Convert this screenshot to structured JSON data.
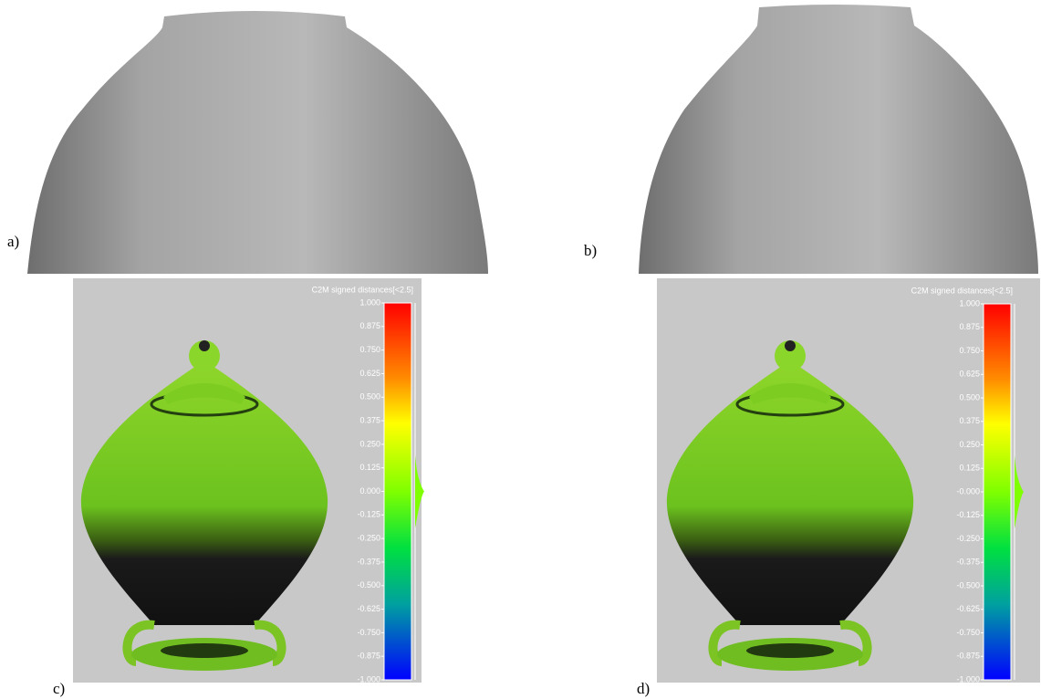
{
  "panels": [
    {
      "label": "a)"
    },
    {
      "label": "b)"
    },
    {
      "label": "c)",
      "scale": {
        "title": "C2M signed distances[<2.5]",
        "ticks": [
          {
            "value": 1,
            "label": "1.000"
          },
          {
            "value": 0.875,
            "label": "0.875"
          },
          {
            "value": 0.75,
            "label": "0.750"
          },
          {
            "value": 0.625,
            "label": "0.625"
          },
          {
            "value": 0.5,
            "label": "0.500"
          },
          {
            "value": 0.375,
            "label": "0.375"
          },
          {
            "value": 0.25,
            "label": "0.250"
          },
          {
            "value": 0.125,
            "label": "0.125"
          },
          {
            "value": 0,
            "label": "0.000"
          },
          {
            "value": -0.125,
            "label": "-0.125"
          },
          {
            "value": -0.25,
            "label": "-0.250"
          },
          {
            "value": -0.375,
            "label": "-0.375"
          },
          {
            "value": -0.5,
            "label": "-0.500"
          },
          {
            "value": -0.625,
            "label": "-0.625"
          },
          {
            "value": -0.75,
            "label": "-0.750"
          },
          {
            "value": -0.875,
            "label": "-0.875"
          },
          {
            "value": -1,
            "label": "-1.000"
          }
        ]
      }
    },
    {
      "label": "d)",
      "scale": {
        "title": "C2M signed distances[<2.5]",
        "ticks": [
          {
            "value": 1,
            "label": "1.000"
          },
          {
            "value": 0.875,
            "label": "0.875"
          },
          {
            "value": 0.75,
            "label": "0.750"
          },
          {
            "value": 0.625,
            "label": "0.625"
          },
          {
            "value": 0.5,
            "label": "0.500"
          },
          {
            "value": 0.375,
            "label": "0.375"
          },
          {
            "value": 0.25,
            "label": "0.250"
          },
          {
            "value": 0.125,
            "label": "0.125"
          },
          {
            "value": 0,
            "label": "-0.000"
          },
          {
            "value": -0.125,
            "label": "-0.125"
          },
          {
            "value": -0.25,
            "label": "-0.250"
          },
          {
            "value": -0.375,
            "label": "-0.375"
          },
          {
            "value": -0.5,
            "label": "-0.500"
          },
          {
            "value": -0.625,
            "label": "-0.625"
          },
          {
            "value": -0.75,
            "label": "-0.750"
          },
          {
            "value": -0.875,
            "label": "-0.875"
          },
          {
            "value": -1,
            "label": "-1.000"
          }
        ]
      }
    }
  ]
}
